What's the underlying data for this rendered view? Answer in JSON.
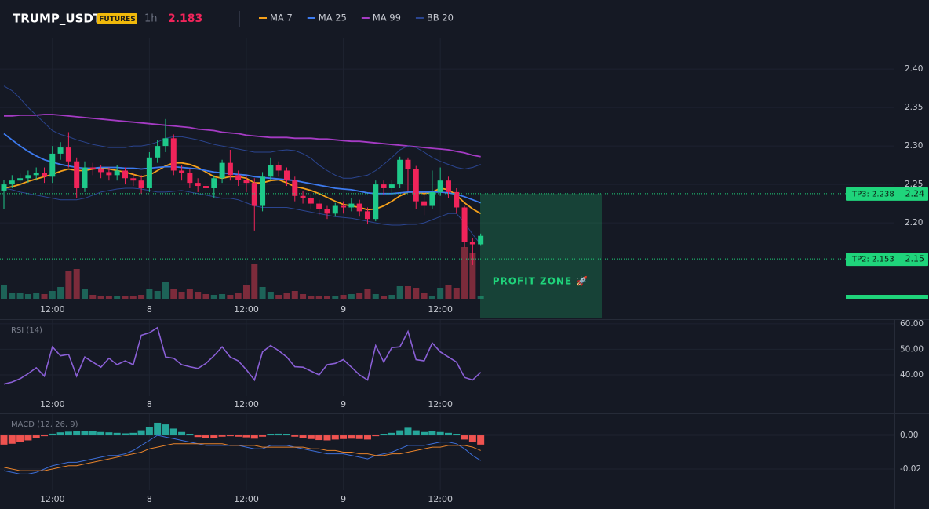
{
  "header": {
    "symbol": "TRUMP_USDT",
    "market": "FUTURES",
    "interval": "1h",
    "price": 2.183
  },
  "chart_data": [
    {
      "type": "candlestick",
      "xlim": [
        -0.485,
        110.2
      ],
      "xticks": [
        {
          "value": 6,
          "label": "12:00"
        },
        {
          "value": 18,
          "label": "8"
        },
        {
          "value": 30,
          "label": "12:00"
        },
        {
          "value": 42,
          "label": "9"
        },
        {
          "value": 54,
          "label": "12:00"
        }
      ],
      "ylim": [
        2.099,
        2.441
      ],
      "yticks": [
        {
          "value": 2.2,
          "label": "2.20"
        },
        2.25,
        {
          "value": 2.3,
          "label": "2.30"
        },
        2.35,
        {
          "value": 2.4,
          "label": "2.40"
        }
      ],
      "grid": true,
      "up_color": "#1ec98a",
      "down_color": "#f0245a",
      "open": [
        2.242,
        2.25,
        2.255,
        2.258,
        2.262,
        2.265,
        2.26,
        2.29,
        2.298,
        2.28,
        2.245,
        2.272,
        2.27,
        2.266,
        2.262,
        2.268,
        2.258,
        2.255,
        2.245,
        2.285,
        2.3,
        2.31,
        2.268,
        2.265,
        2.252,
        2.248,
        2.245,
        2.258,
        2.278,
        2.262,
        2.256,
        2.252,
        2.222,
        2.26,
        2.275,
        2.268,
        2.255,
        2.235,
        2.232,
        2.225,
        2.218,
        2.212,
        2.222,
        2.22,
        2.225,
        2.215,
        2.205,
        2.25,
        2.245,
        2.25,
        2.282,
        2.27,
        2.228,
        2.222,
        2.24,
        2.255,
        2.24,
        2.22,
        2.175,
        2.172
      ],
      "high": [
        2.256,
        2.262,
        2.264,
        2.268,
        2.272,
        2.272,
        2.3,
        2.305,
        2.318,
        2.285,
        2.28,
        2.278,
        2.275,
        2.272,
        2.275,
        2.272,
        2.265,
        2.262,
        2.292,
        2.308,
        2.335,
        2.315,
        2.275,
        2.27,
        2.258,
        2.255,
        2.262,
        2.282,
        2.295,
        2.268,
        2.262,
        2.258,
        2.266,
        2.285,
        2.28,
        2.272,
        2.26,
        2.242,
        2.238,
        2.23,
        2.222,
        2.226,
        2.228,
        2.232,
        2.23,
        2.22,
        2.255,
        2.255,
        2.256,
        2.286,
        2.285,
        2.274,
        2.236,
        2.268,
        2.272,
        2.26,
        2.245,
        2.222,
        2.18,
        2.186
      ],
      "low": [
        2.218,
        2.245,
        2.248,
        2.252,
        2.255,
        2.252,
        2.252,
        2.282,
        2.272,
        2.232,
        2.24,
        2.262,
        2.258,
        2.255,
        2.255,
        2.25,
        2.248,
        2.238,
        2.24,
        2.278,
        2.292,
        2.262,
        2.255,
        2.245,
        2.24,
        2.238,
        2.232,
        2.252,
        2.255,
        2.248,
        2.24,
        2.19,
        2.215,
        2.255,
        2.26,
        2.248,
        2.228,
        2.225,
        2.218,
        2.21,
        2.205,
        2.208,
        2.212,
        2.215,
        2.208,
        2.198,
        2.202,
        2.236,
        2.238,
        2.245,
        2.242,
        2.218,
        2.21,
        2.218,
        2.235,
        2.232,
        2.212,
        2.168,
        2.145,
        2.17
      ],
      "close": [
        2.25,
        2.255,
        2.258,
        2.262,
        2.265,
        2.26,
        2.29,
        2.298,
        2.28,
        2.245,
        2.272,
        2.27,
        2.266,
        2.262,
        2.268,
        2.258,
        2.255,
        2.245,
        2.285,
        2.3,
        2.31,
        2.268,
        2.265,
        2.252,
        2.248,
        2.245,
        2.258,
        2.278,
        2.262,
        2.256,
        2.252,
        2.222,
        2.26,
        2.275,
        2.268,
        2.255,
        2.235,
        2.232,
        2.225,
        2.218,
        2.212,
        2.222,
        2.22,
        2.225,
        2.215,
        2.205,
        2.25,
        2.245,
        2.25,
        2.282,
        2.27,
        2.228,
        2.222,
        2.24,
        2.255,
        2.24,
        2.22,
        2.175,
        2.172,
        2.183
      ],
      "volume": {
        "up_color": "#1d6358",
        "down_color": "#7c2b3b",
        "values": [
          18,
          8,
          8,
          6,
          7,
          6,
          10,
          15,
          35,
          38,
          12,
          5,
          4,
          4,
          3,
          3,
          3,
          5,
          12,
          10,
          22,
          12,
          9,
          12,
          9,
          6,
          5,
          6,
          5,
          8,
          18,
          44,
          15,
          9,
          5,
          8,
          10,
          6,
          4,
          4,
          3,
          3,
          5,
          6,
          8,
          12,
          6,
          4,
          5,
          16,
          16,
          14,
          8,
          4,
          14,
          18,
          14,
          66,
          58,
          3
        ]
      },
      "series": [
        {
          "name": "MA 7",
          "color": "#f5a01a",
          "values": [
            2.245,
            2.247,
            2.25,
            2.254,
            2.257,
            2.26,
            2.263,
            2.267,
            2.27,
            2.268,
            2.268,
            2.27,
            2.271,
            2.27,
            2.268,
            2.266,
            2.263,
            2.26,
            2.262,
            2.268,
            2.274,
            2.278,
            2.278,
            2.276,
            2.272,
            2.266,
            2.26,
            2.258,
            2.26,
            2.26,
            2.258,
            2.252,
            2.252,
            2.255,
            2.256,
            2.252,
            2.247,
            2.245,
            2.242,
            2.238,
            2.233,
            2.228,
            2.224,
            2.222,
            2.22,
            2.217,
            2.218,
            2.222,
            2.228,
            2.235,
            2.24,
            2.24,
            2.238,
            2.24,
            2.245,
            2.243,
            2.236,
            2.226,
            2.218,
            2.212
          ]
        },
        {
          "name": "MA 25",
          "color": "#3d7bf0",
          "values": [
            2.316,
            2.308,
            2.3,
            2.293,
            2.287,
            2.282,
            2.279,
            2.276,
            2.274,
            2.272,
            2.271,
            2.271,
            2.272,
            2.272,
            2.272,
            2.271,
            2.271,
            2.27,
            2.271,
            2.272,
            2.273,
            2.273,
            2.272,
            2.271,
            2.27,
            2.268,
            2.266,
            2.265,
            2.264,
            2.263,
            2.262,
            2.26,
            2.259,
            2.258,
            2.257,
            2.256,
            2.255,
            2.253,
            2.251,
            2.249,
            2.247,
            2.245,
            2.244,
            2.243,
            2.241,
            2.239,
            2.238,
            2.238,
            2.238,
            2.239,
            2.24,
            2.24,
            2.24,
            2.24,
            2.24,
            2.239,
            2.237,
            2.234,
            2.23,
            2.226
          ]
        },
        {
          "name": "MA 99",
          "color": "#a53bc4",
          "values": [
            2.339,
            2.339,
            2.34,
            2.34,
            2.34,
            2.341,
            2.341,
            2.34,
            2.339,
            2.338,
            2.337,
            2.336,
            2.335,
            2.334,
            2.333,
            2.332,
            2.331,
            2.33,
            2.329,
            2.328,
            2.327,
            2.326,
            2.325,
            2.324,
            2.322,
            2.321,
            2.32,
            2.318,
            2.317,
            2.316,
            2.314,
            2.313,
            2.312,
            2.311,
            2.311,
            2.311,
            2.31,
            2.31,
            2.31,
            2.309,
            2.309,
            2.308,
            2.307,
            2.306,
            2.306,
            2.305,
            2.304,
            2.303,
            2.302,
            2.301,
            2.3,
            2.299,
            2.298,
            2.297,
            2.296,
            2.295,
            2.293,
            2.291,
            2.288,
            2.286
          ]
        },
        {
          "name": "BB 20",
          "color": "#2b4590",
          "upper": [
            2.378,
            2.372,
            2.362,
            2.35,
            2.34,
            2.33,
            2.32,
            2.315,
            2.312,
            2.308,
            2.305,
            2.302,
            2.3,
            2.298,
            2.298,
            2.298,
            2.3,
            2.3,
            2.302,
            2.305,
            2.31,
            2.312,
            2.312,
            2.31,
            2.308,
            2.305,
            2.302,
            2.3,
            2.298,
            2.296,
            2.294,
            2.292,
            2.292,
            2.292,
            2.294,
            2.295,
            2.294,
            2.29,
            2.284,
            2.275,
            2.268,
            2.262,
            2.258,
            2.258,
            2.26,
            2.262,
            2.268,
            2.276,
            2.285,
            2.295,
            2.3,
            2.298,
            2.292,
            2.285,
            2.28,
            2.276,
            2.272,
            2.27,
            2.272,
            2.276
          ],
          "lower": [
            2.245,
            2.243,
            2.24,
            2.238,
            2.236,
            2.234,
            2.232,
            2.23,
            2.23,
            2.23,
            2.232,
            2.236,
            2.24,
            2.242,
            2.244,
            2.245,
            2.245,
            2.244,
            2.242,
            2.24,
            2.24,
            2.241,
            2.242,
            2.24,
            2.238,
            2.236,
            2.234,
            2.232,
            2.232,
            2.23,
            2.226,
            2.222,
            2.22,
            2.22,
            2.22,
            2.22,
            2.218,
            2.216,
            2.214,
            2.212,
            2.21,
            2.208,
            2.207,
            2.206,
            2.204,
            2.202,
            2.2,
            2.198,
            2.197,
            2.197,
            2.198,
            2.198,
            2.2,
            2.204,
            2.208,
            2.212,
            2.212,
            2.2,
            2.185,
            2.172
          ]
        }
      ],
      "annotations": [
        {
          "label": "TP3: 2.238",
          "value": 2.238,
          "axis_label": "2.24",
          "color": "#1fd47b"
        },
        {
          "label": "TP2: 2.153",
          "value": 2.153,
          "axis_label": "2.15",
          "color": "#1fd47b"
        }
      ],
      "zone_label": "PROFIT ZONE 🚀"
    },
    {
      "type": "line",
      "title": "RSI (14)",
      "xlim": [
        -0.485,
        110.2
      ],
      "xticks": [
        {
          "value": 6,
          "label": "12:00"
        },
        {
          "value": 18,
          "label": "8"
        },
        {
          "value": 30,
          "label": "12:00"
        },
        {
          "value": 42,
          "label": "9"
        },
        {
          "value": 54,
          "label": "12:00"
        }
      ],
      "ylim": [
        31.7,
        61.5
      ],
      "yticks": [
        {
          "value": 40,
          "label": "40.00"
        },
        {
          "value": 50,
          "label": "50.00"
        },
        {
          "value": 60,
          "label": "60.00"
        }
      ],
      "grid": true,
      "series": [
        {
          "color": "#8a5fd6",
          "values": [
            36.4,
            37.2,
            38.5,
            40.5,
            42.8,
            39.5,
            51,
            47.5,
            48,
            39.5,
            47,
            45,
            43,
            46.5,
            44,
            45.5,
            44,
            55.5,
            56.5,
            58.5,
            47,
            46.5,
            44,
            43.2,
            42.5,
            44.5,
            47.5,
            51,
            47,
            45.5,
            42,
            38,
            49,
            51.5,
            49.5,
            47,
            43.2,
            43,
            41.5,
            40,
            44,
            44.5,
            46,
            43,
            40,
            38,
            51.5,
            45,
            50.7,
            51,
            57,
            46,
            45.5,
            52.5,
            49,
            47,
            45,
            39,
            38,
            41
          ]
        }
      ]
    },
    {
      "type": "macd",
      "title": "MACD (12, 26, 9)",
      "xlim": [
        -0.485,
        110.2
      ],
      "xticks": [
        {
          "value": 6,
          "label": "12:00"
        },
        {
          "value": 18,
          "label": "8"
        },
        {
          "value": 30,
          "label": "12:00"
        },
        {
          "value": 42,
          "label": "9"
        },
        {
          "value": 54,
          "label": "12:00"
        }
      ],
      "ylim": [
        -0.0326,
        0.0126
      ],
      "yticks": [
        -0.02,
        {
          "value": 0,
          "label": "0.00"
        }
      ],
      "grid": true,
      "histogram": {
        "up_color": "#26a69a",
        "down_color": "#ef5350",
        "values": [
          -0.0055,
          -0.005,
          -0.004,
          -0.003,
          -0.0015,
          -0.0005,
          0.001,
          0.0018,
          0.0022,
          0.0028,
          0.0028,
          0.0025,
          0.002,
          0.0018,
          0.0015,
          0.0012,
          0.0015,
          0.003,
          0.005,
          0.0075,
          0.0065,
          0.004,
          0.002,
          0.0005,
          -0.001,
          -0.0018,
          -0.0015,
          -0.0008,
          -0.0005,
          -0.0008,
          -0.0012,
          -0.002,
          -0.0008,
          0.0008,
          0.001,
          0.0008,
          -0.0008,
          -0.0015,
          -0.0022,
          -0.0028,
          -0.003,
          -0.0025,
          -0.0022,
          -0.002,
          -0.0022,
          -0.0025,
          -0.0005,
          0.0005,
          0.0015,
          0.003,
          0.0045,
          0.003,
          0.002,
          0.0025,
          0.002,
          0.0015,
          0.0005,
          -0.0025,
          -0.004,
          -0.0055
        ]
      },
      "series": [
        {
          "color": "#3d6fd9",
          "values": [
            -0.021,
            -0.022,
            -0.023,
            -0.023,
            -0.022,
            -0.02,
            -0.018,
            -0.017,
            -0.016,
            -0.016,
            -0.015,
            -0.014,
            -0.013,
            -0.012,
            -0.012,
            -0.011,
            -0.009,
            -0.006,
            -0.003,
            0,
            -0.001,
            -0.002,
            -0.003,
            -0.004,
            -0.005,
            -0.006,
            -0.006,
            -0.006,
            -0.006,
            -0.006,
            -0.007,
            -0.008,
            -0.008,
            -0.006,
            -0.006,
            -0.006,
            -0.007,
            -0.008,
            -0.009,
            -0.01,
            -0.011,
            -0.011,
            -0.011,
            -0.012,
            -0.013,
            -0.014,
            -0.012,
            -0.011,
            -0.01,
            -0.008,
            -0.006,
            -0.006,
            -0.006,
            -0.005,
            -0.004,
            -0.004,
            -0.005,
            -0.008,
            -0.012,
            -0.015
          ]
        },
        {
          "color": "#e8832a",
          "values": [
            -0.019,
            -0.02,
            -0.021,
            -0.021,
            -0.021,
            -0.021,
            -0.02,
            -0.019,
            -0.018,
            -0.018,
            -0.017,
            -0.016,
            -0.015,
            -0.014,
            -0.013,
            -0.012,
            -0.011,
            -0.01,
            -0.008,
            -0.007,
            -0.006,
            -0.005,
            -0.005,
            -0.005,
            -0.005,
            -0.005,
            -0.005,
            -0.005,
            -0.006,
            -0.006,
            -0.006,
            -0.006,
            -0.007,
            -0.007,
            -0.007,
            -0.007,
            -0.007,
            -0.007,
            -0.008,
            -0.008,
            -0.009,
            -0.009,
            -0.01,
            -0.01,
            -0.011,
            -0.011,
            -0.012,
            -0.012,
            -0.011,
            -0.011,
            -0.01,
            -0.009,
            -0.008,
            -0.007,
            -0.007,
            -0.006,
            -0.006,
            -0.006,
            -0.007,
            -0.009
          ]
        }
      ]
    }
  ]
}
